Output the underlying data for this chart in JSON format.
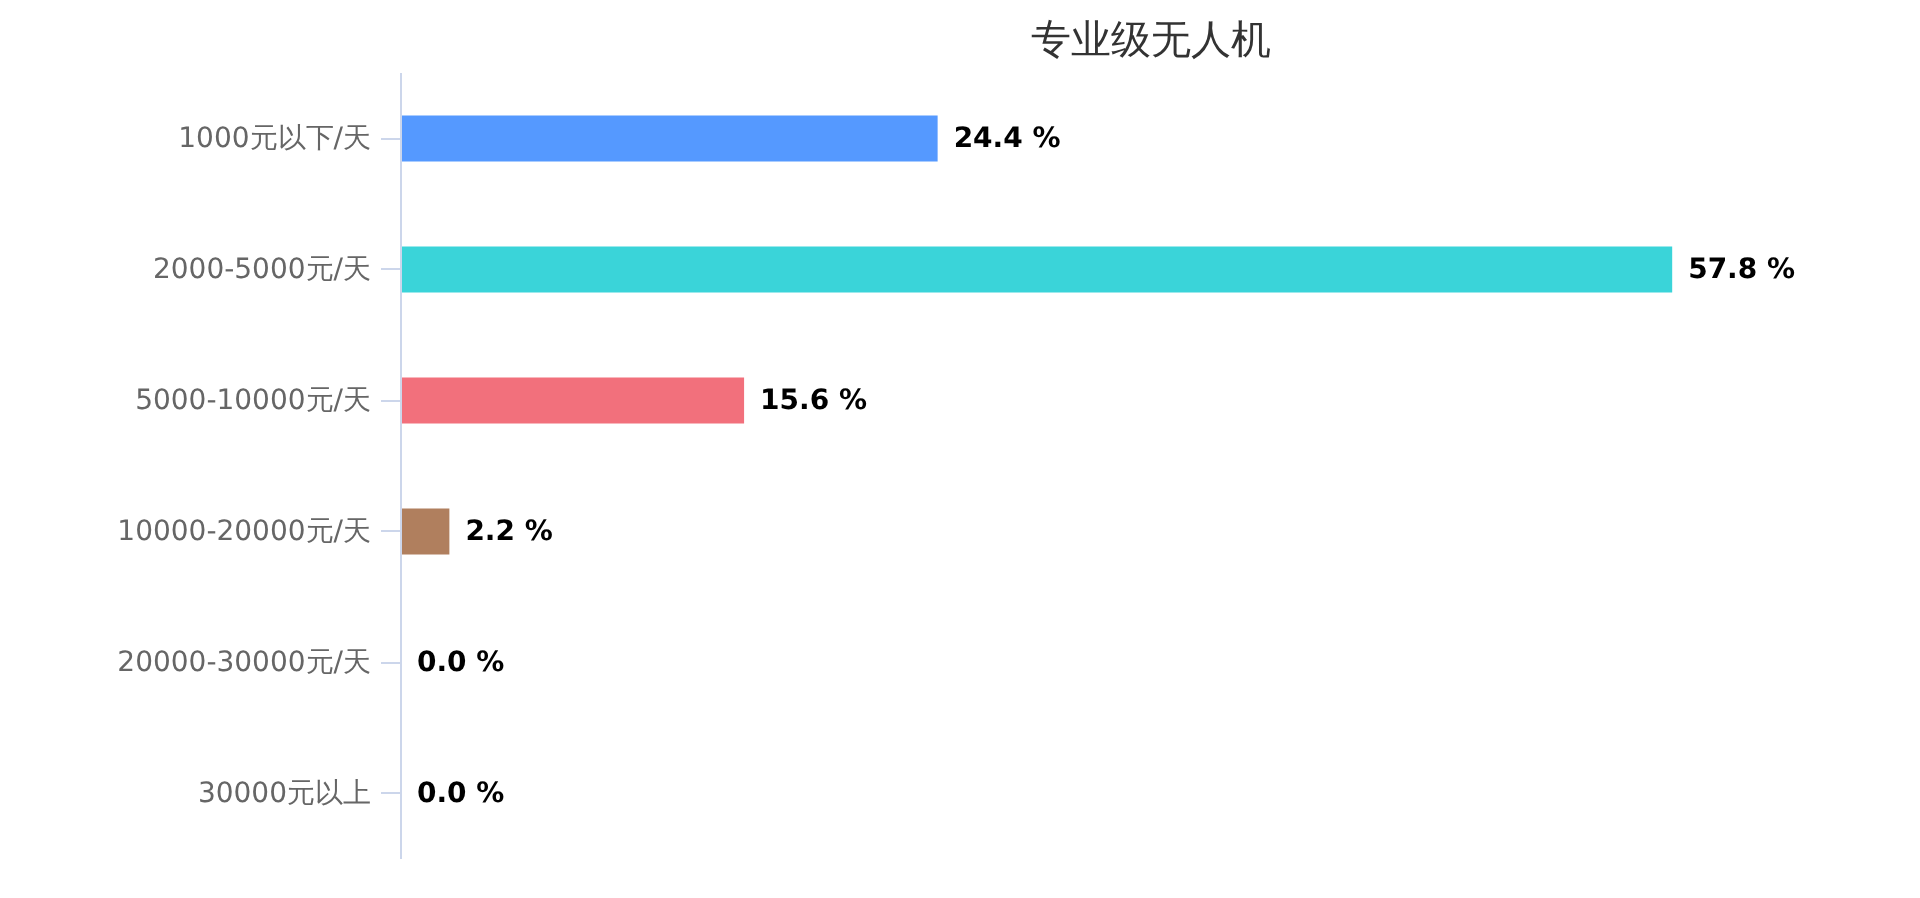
{
  "chart_data": {
    "type": "bar",
    "orientation": "horizontal",
    "title": "专业级无人机",
    "categories": [
      "1000元以下/天",
      "2000-5000元/天",
      "5000-10000元/天",
      "10000-20000元/天",
      "20000-30000元/天",
      "30000元以上"
    ],
    "values": [
      24.4,
      57.8,
      15.6,
      2.2,
      0.0,
      0.0
    ],
    "colors": [
      "#5599ff",
      "#3ad4d9",
      "#f2707c",
      "#b07f5e",
      "#8bc34a",
      "#9c7ad6"
    ],
    "value_labels": [
      "24.4 %",
      "57.8 %",
      "15.6 %",
      "2.2 %",
      "0.0 %",
      "0.0 %"
    ],
    "grid": false
  }
}
